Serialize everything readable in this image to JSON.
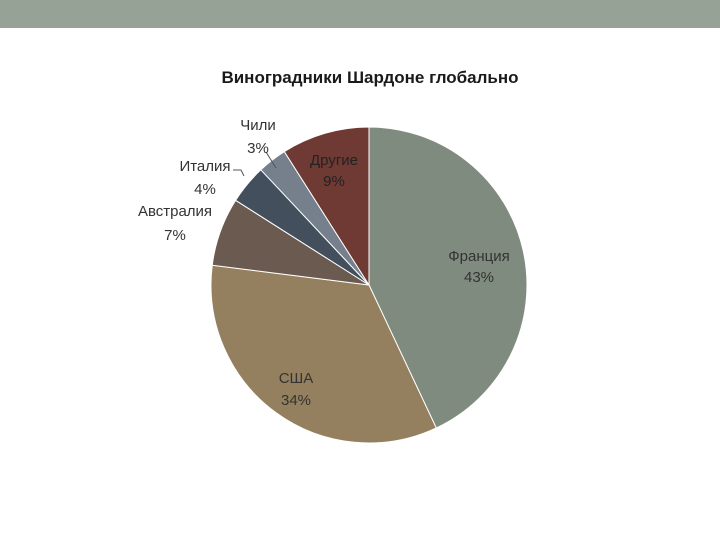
{
  "slide": {
    "bar_color": "#97a296"
  },
  "chart_data": {
    "type": "pie",
    "title": "Виноградники Шардоне глобально",
    "slices": [
      {
        "label": "Франция",
        "value": 43,
        "value_text": "43%",
        "color": "#808b7f"
      },
      {
        "label": "США",
        "value": 34,
        "value_text": "34%",
        "color": "#94805e"
      },
      {
        "label": "Австралия",
        "value": 7,
        "value_text": "7%",
        "color": "#6b5a50"
      },
      {
        "label": "Италия",
        "value": 4,
        "value_text": "4%",
        "color": "#434f5c"
      },
      {
        "label": "Чили",
        "value": 3,
        "value_text": "3%",
        "color": "#76808c"
      },
      {
        "label": "Другие",
        "value": 9,
        "value_text": "9%",
        "color": "#6e3a33"
      }
    ],
    "start_angle_deg": 0,
    "direction": "clockwise",
    "legend": "none",
    "data_labels": "category and percent"
  }
}
